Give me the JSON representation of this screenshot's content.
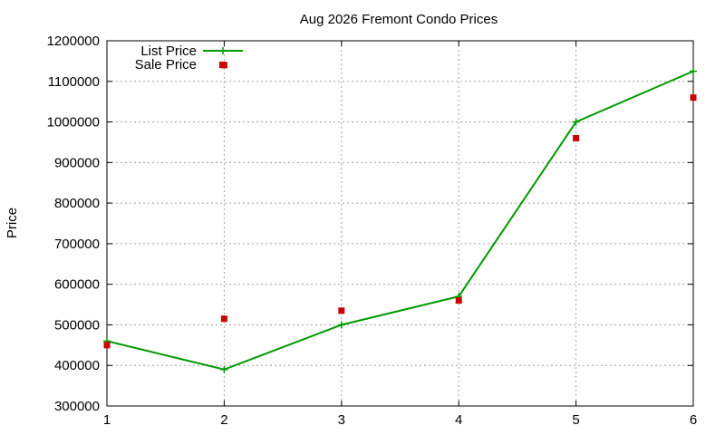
{
  "chart_data": {
    "type": "line",
    "title": "Aug 2026 Fremont Condo Prices",
    "xlabel": "",
    "ylabel": "Price",
    "x": [
      1,
      2,
      3,
      4,
      5,
      6
    ],
    "xlim": [
      1,
      6
    ],
    "ylim": [
      300000,
      1200000
    ],
    "x_ticks": [
      "1",
      "2",
      "3",
      "4",
      "5",
      "6"
    ],
    "y_ticks": [
      "300000",
      "400000",
      "500000",
      "600000",
      "700000",
      "800000",
      "900000",
      "1000000",
      "1100000",
      "1200000"
    ],
    "grid": true,
    "legend_position": "top-left",
    "series": [
      {
        "name": "List Price",
        "style": "line-with-plus-markers",
        "color": "#009900",
        "values": [
          460000,
          390000,
          500000,
          570000,
          1000000,
          1125000
        ]
      },
      {
        "name": "Sale Price",
        "style": "square-markers",
        "color": "#cc0000",
        "values": [
          450000,
          515000,
          535000,
          560000,
          960000,
          1060000
        ]
      },
      {
        "name": "",
        "style": "square-markers",
        "color": "#cc0000",
        "x": [
          2
        ],
        "values": [
          1140000
        ]
      }
    ]
  }
}
